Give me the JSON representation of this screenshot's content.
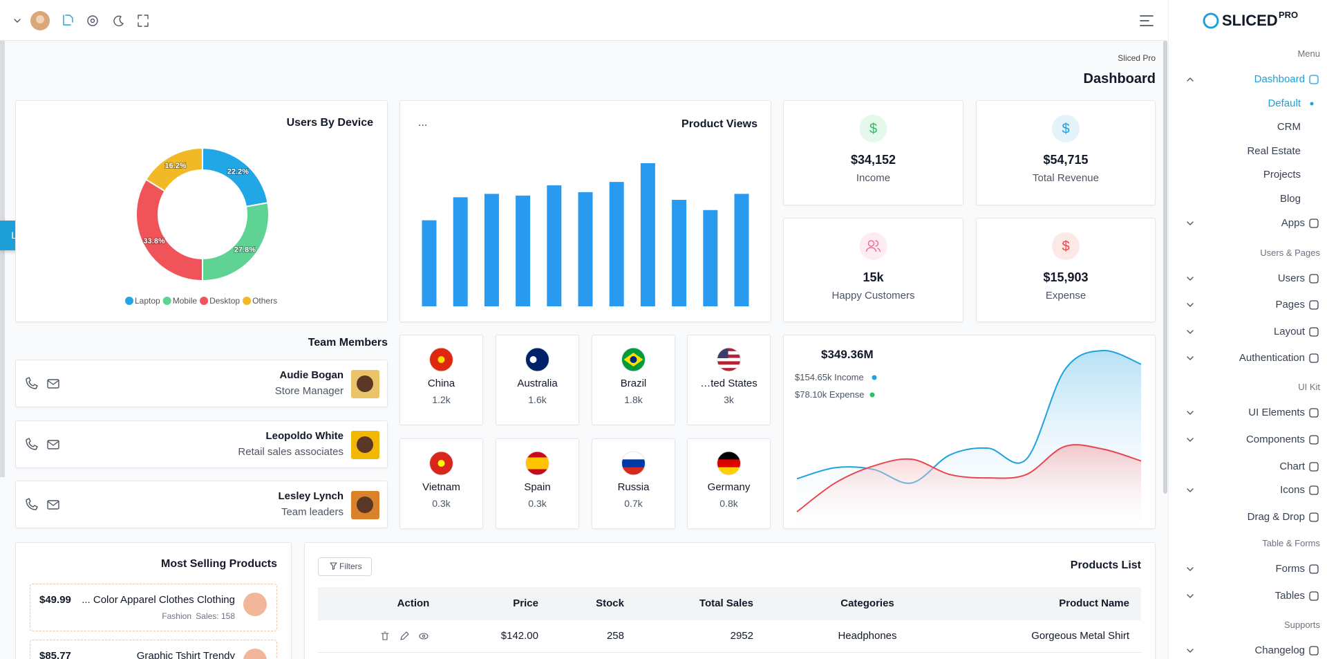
{
  "sidebar": {
    "brand": "SLICED",
    "brand_badge": "PRO",
    "items": [
      {
        "label": "Menu",
        "kind": "section"
      },
      {
        "label": "Dashboard",
        "kind": "item",
        "children": true,
        "expanded": true,
        "active": true
      },
      {
        "label": "Default",
        "kind": "sub",
        "active": true
      },
      {
        "label": "CRM",
        "kind": "sub"
      },
      {
        "label": "Real Estate",
        "kind": "sub"
      },
      {
        "label": "Projects",
        "kind": "sub"
      },
      {
        "label": "Blog",
        "kind": "sub"
      },
      {
        "label": "Apps",
        "kind": "item",
        "children": true
      },
      {
        "label": "Users & Pages",
        "kind": "section"
      },
      {
        "label": "Users",
        "kind": "item",
        "children": true
      },
      {
        "label": "Pages",
        "kind": "item",
        "children": true
      },
      {
        "label": "Layout",
        "kind": "item",
        "children": true
      },
      {
        "label": "Authentication",
        "kind": "item",
        "children": true
      },
      {
        "label": "UI Kit",
        "kind": "section"
      },
      {
        "label": "UI Elements",
        "kind": "item",
        "children": true
      },
      {
        "label": "Components",
        "kind": "item",
        "children": true
      },
      {
        "label": "Chart",
        "kind": "item"
      },
      {
        "label": "Icons",
        "kind": "item",
        "children": true
      },
      {
        "label": "Drag & Drop",
        "kind": "item"
      },
      {
        "label": "Table & Forms",
        "kind": "section"
      },
      {
        "label": "Forms",
        "kind": "item",
        "children": true
      },
      {
        "label": "Tables",
        "kind": "item",
        "children": true
      },
      {
        "label": "Supports",
        "kind": "section"
      },
      {
        "label": "Changelog",
        "kind": "item",
        "children": true
      }
    ]
  },
  "ltr_button": "LTR",
  "breadcrumb": "Sliced Pro",
  "page_title": "Dashboard",
  "chart_data": [
    {
      "type": "donut",
      "title": "Users By Device",
      "categories": [
        "Laptop",
        "Mobile",
        "Desktop",
        "Others"
      ],
      "values": [
        22.2,
        27.8,
        33.8,
        16.2
      ],
      "value_labels": [
        "22.2%",
        "27.8%",
        "33.8%",
        "16.2%"
      ],
      "colors": [
        "#22a7e6",
        "#5fd393",
        "#f0545a",
        "#f1b925"
      ]
    },
    {
      "type": "bar",
      "title": "Product Views",
      "menu_label": "...",
      "values": [
        101,
        128,
        132,
        130,
        142,
        134,
        146,
        168,
        125,
        113,
        132
      ],
      "color": "#2a9af0"
    },
    {
      "type": "area",
      "title": "$349.36M",
      "series": [
        {
          "name": "$154.65k Income",
          "color": "#1ea2e0",
          "legend_color": "#1ea2e0",
          "values": [
            47,
            60,
            58,
            42,
            75,
            83,
            70,
            175,
            198,
            182
          ]
        },
        {
          "name": "$78.10k Expense",
          "color": "#e8464e",
          "legend_color": "#22c55e",
          "values": [
            8,
            42,
            62,
            70,
            52,
            48,
            52,
            85,
            82,
            68
          ]
        }
      ]
    }
  ],
  "stats": [
    {
      "icon": "$",
      "value": "$34,152",
      "label": "Income",
      "color": "#22c55e"
    },
    {
      "icon": "$",
      "value": "$54,715",
      "label": "Total Revenue",
      "color": "#1e9fd8"
    },
    {
      "value": "15k",
      "label": "Happy Customers",
      "color": "#ec6f94"
    },
    {
      "icon": "$",
      "value": "$15,903",
      "label": "Expense",
      "color": "#ef4444"
    }
  ],
  "team": {
    "title": "Team Members",
    "members": [
      {
        "name": "Audie Bogan",
        "role": "Store Manager"
      },
      {
        "name": "Leopoldo White",
        "role": "Retail sales associates"
      },
      {
        "name": "Lesley Lynch",
        "role": "Team leaders"
      }
    ]
  },
  "countries": [
    {
      "name": "China",
      "value": "1.2k"
    },
    {
      "name": "Australia",
      "value": "1.6k"
    },
    {
      "name": "Brazil",
      "value": "1.8k"
    },
    {
      "name": "…ted States",
      "value": "3k"
    },
    {
      "name": "Vietnam",
      "value": "0.3k"
    },
    {
      "name": "Spain",
      "value": "0.3k"
    },
    {
      "name": "Russia",
      "value": "0.7k"
    },
    {
      "name": "Germany",
      "value": "0.8k"
    }
  ],
  "most_selling": {
    "title": "Most Selling Products",
    "products": [
      {
        "price": "$49.99",
        "name": "... Color Apparel Clothes Clothing",
        "category": "Fashion",
        "sales": "Sales: 158"
      },
      {
        "price": "$85.77",
        "name": "Graphic Tshirt Trendy"
      }
    ]
  },
  "products_list": {
    "title": "Products List",
    "filter_button": "Filters",
    "headers": [
      "Action",
      "Price",
      "Stock",
      "Total Sales",
      "Categories",
      "Product Name"
    ],
    "rows": [
      [
        "$142.00",
        "258",
        "2952",
        "Headphones",
        "Gorgeous Metal Shirt"
      ]
    ]
  }
}
